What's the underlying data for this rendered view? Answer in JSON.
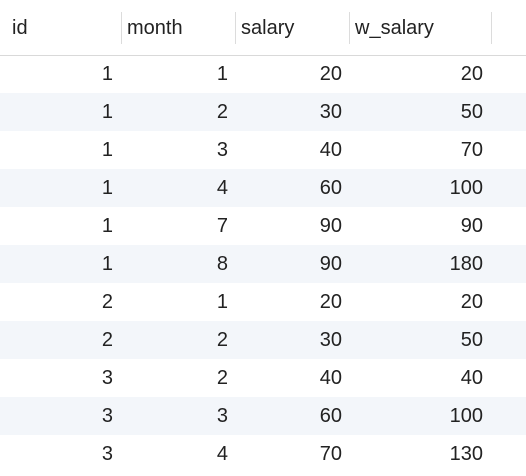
{
  "table": {
    "columns": [
      "id",
      "month",
      "salary",
      "w_salary"
    ],
    "rows": [
      [
        1,
        1,
        20,
        20
      ],
      [
        1,
        2,
        30,
        50
      ],
      [
        1,
        3,
        40,
        70
      ],
      [
        1,
        4,
        60,
        100
      ],
      [
        1,
        7,
        90,
        90
      ],
      [
        1,
        8,
        90,
        180
      ],
      [
        2,
        1,
        20,
        20
      ],
      [
        2,
        2,
        30,
        50
      ],
      [
        3,
        2,
        40,
        40
      ],
      [
        3,
        3,
        60,
        100
      ],
      [
        3,
        4,
        70,
        130
      ]
    ]
  }
}
